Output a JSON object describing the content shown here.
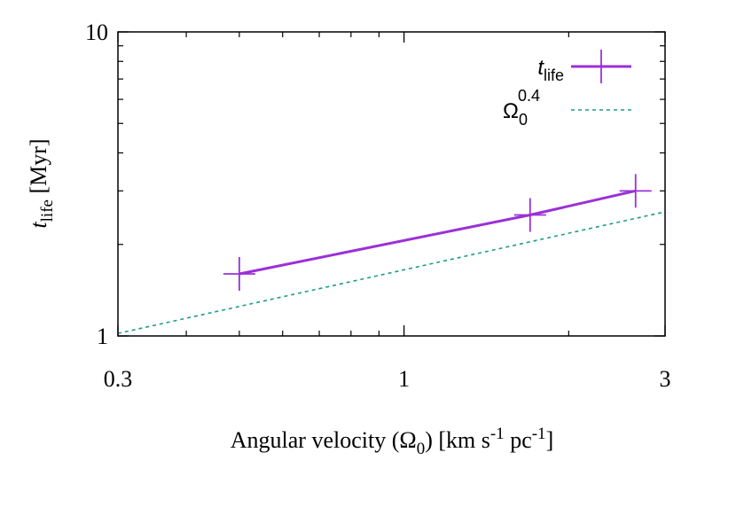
{
  "chart_data": {
    "type": "line",
    "x_scale": "log",
    "y_scale": "log",
    "xlim": [
      0.3,
      3
    ],
    "ylim": [
      1,
      10
    ],
    "x_ticks": [
      {
        "value": 0.3,
        "label": "0.3"
      },
      {
        "value": 1,
        "label": "1"
      },
      {
        "value": 3,
        "label": "3"
      }
    ],
    "y_ticks": [
      {
        "value": 1,
        "label": "1"
      },
      {
        "value": 10,
        "label": "10"
      }
    ],
    "xlabel": {
      "pre": "Angular velocity (Ω",
      "sub": "0",
      "mid1": ") [km s",
      "sup1": "-1",
      "mid2": " pc",
      "sup2": "-1",
      "post": "]"
    },
    "ylabel": {
      "main": "t",
      "sub": "life",
      "post": " [Myr]"
    },
    "series": [
      {
        "name": {
          "main": "t",
          "sub": "life"
        },
        "color": "#9b30d8",
        "x": [
          0.5,
          1.7,
          2.65
        ],
        "y": [
          1.6,
          2.5,
          3.0
        ]
      },
      {
        "name": {
          "main": "Ω",
          "sub": "0",
          "sup": "0.4"
        },
        "color": "#1a9e82",
        "dashed": true,
        "formula": "y = 1.65 * x^0.4"
      }
    ],
    "legend_position": "top-right"
  }
}
